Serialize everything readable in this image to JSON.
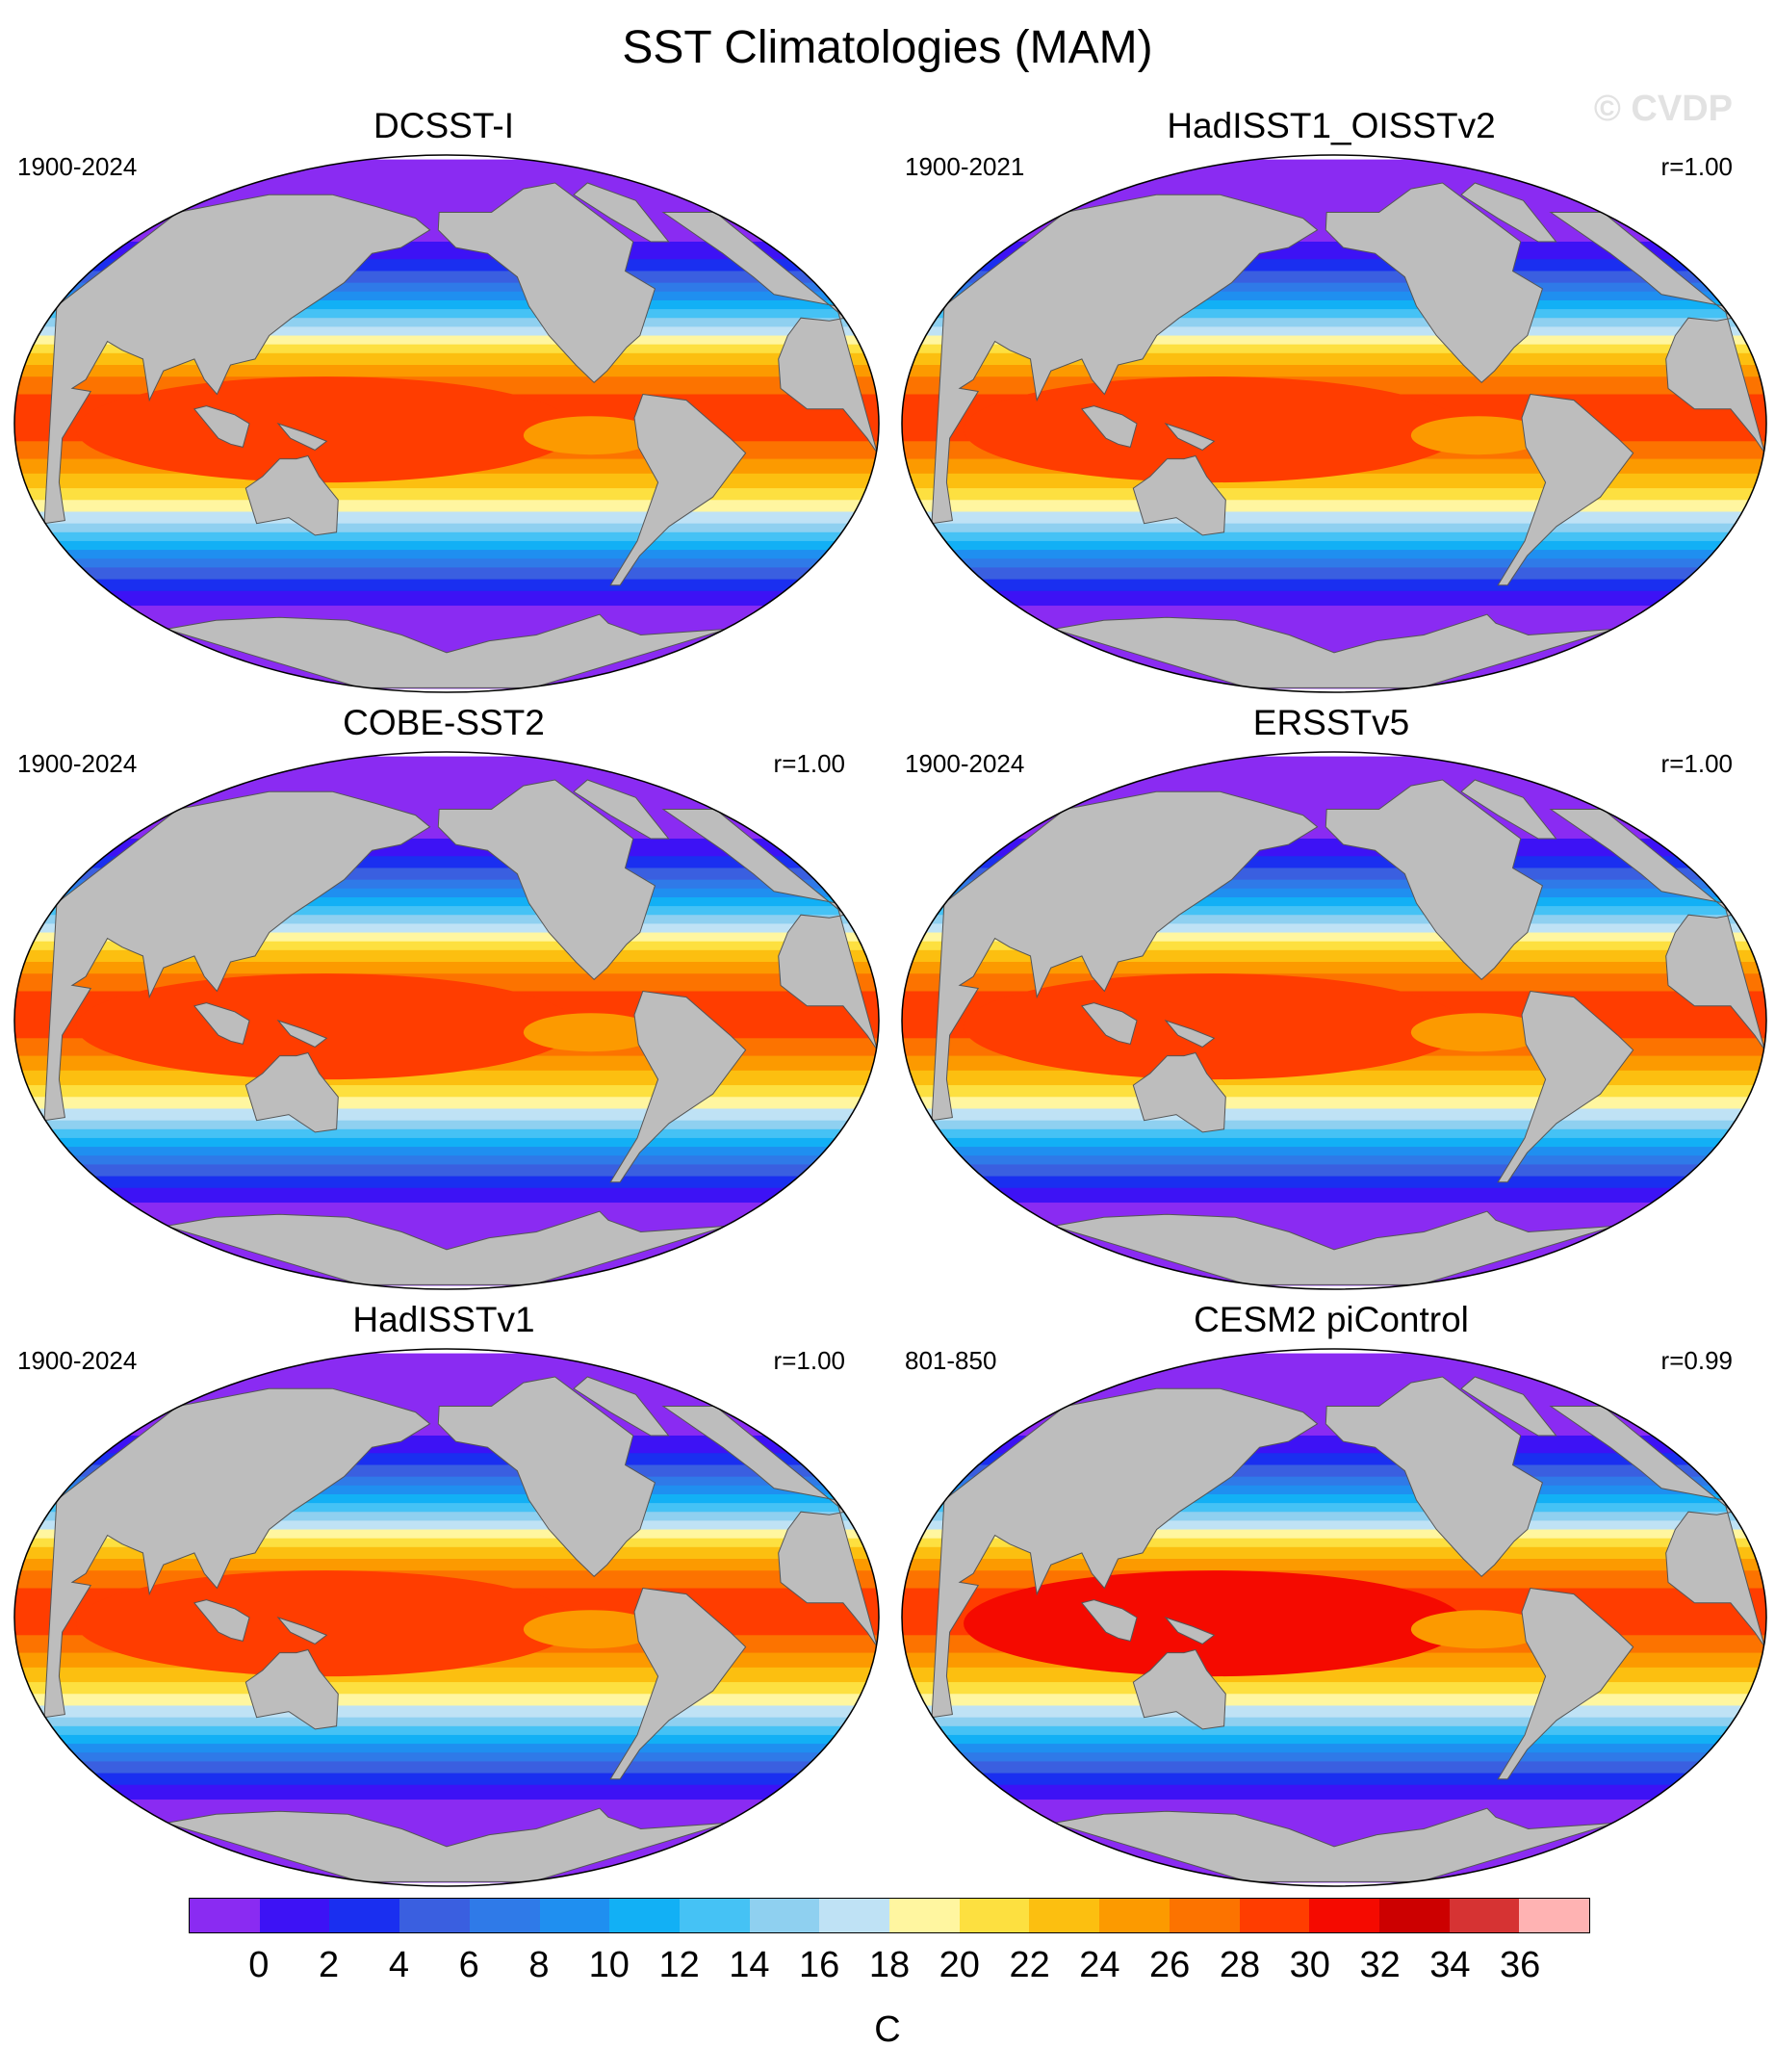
{
  "title": "SST Climatologies (MAM)",
  "watermark": "© CVDP",
  "panels": [
    {
      "name": "DCSST-I",
      "years": "1900-2024",
      "r": ""
    },
    {
      "name": "HadISST1_OISSTv2",
      "years": "1900-2021",
      "r": "r=1.00"
    },
    {
      "name": "COBE-SST2",
      "years": "1900-2024",
      "r": "r=1.00"
    },
    {
      "name": "ERSSTv5",
      "years": "1900-2024",
      "r": "r=1.00"
    },
    {
      "name": "HadISSTv1",
      "years": "1900-2024",
      "r": "r=1.00"
    },
    {
      "name": "CESM2 piControl",
      "years": "801-850",
      "r": "r=0.99"
    }
  ],
  "colorbar": {
    "unit": "C",
    "ticks": [
      "0",
      "2",
      "4",
      "6",
      "8",
      "10",
      "12",
      "14",
      "16",
      "18",
      "20",
      "22",
      "24",
      "26",
      "28",
      "30",
      "32",
      "34",
      "36"
    ],
    "colors": [
      "#8a2bf2",
      "#3d12f5",
      "#1a2ff0",
      "#3a5fe0",
      "#2f7ae8",
      "#1f8ff0",
      "#12b0f5",
      "#45c2f5",
      "#8fd0f0",
      "#bfe2f5",
      "#fff6a0",
      "#fde040",
      "#fcbf10",
      "#fc9a00",
      "#fc7300",
      "#ff3d00",
      "#f50a00",
      "#cc0000",
      "#d63333",
      "#ffb3b3"
    ],
    "land_color": "#bdbdbd"
  }
}
